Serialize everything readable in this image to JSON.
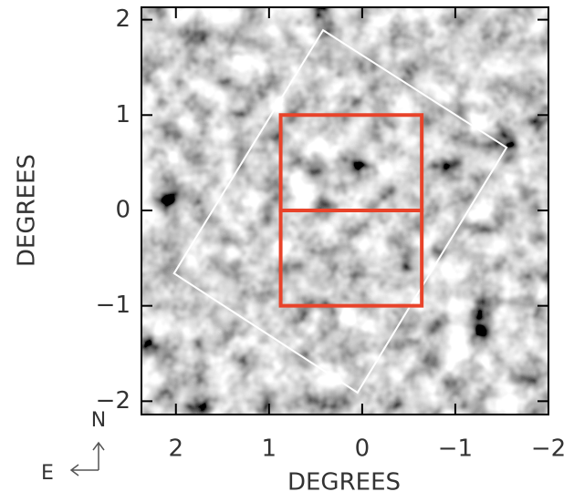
{
  "chart_data": {
    "type": "map",
    "xlabel": "DEGREES",
    "ylabel": "DEGREES",
    "xlim": [
      2.37,
      -2
    ],
    "ylim": [
      -2.14,
      2.13
    ],
    "xticks": [
      2,
      1,
      0,
      {
        "value": -1,
        "label": "−1"
      },
      {
        "value": -2,
        "label": "−2"
      }
    ],
    "yticks": [
      {
        "value": -2,
        "label": "−2"
      },
      {
        "value": -1,
        "label": "−1"
      },
      0,
      1,
      2
    ],
    "compass": {
      "north": "N",
      "east": "E"
    },
    "overlays": [
      {
        "color": "#ffffff",
        "x": [
          0.42,
          -1.55,
          0.05,
          2.02
        ],
        "y": [
          1.89,
          0.66,
          -1.91,
          -0.66
        ]
      },
      {
        "color": "#e8432a",
        "x": [
          0.875,
          -0.64,
          -0.64,
          0.875
        ],
        "y": [
          1,
          1,
          0,
          0
        ]
      },
      {
        "color": "#e8432a",
        "x": [
          0.875,
          -0.64,
          -0.64,
          0.875
        ],
        "y": [
          0,
          0,
          -1,
          -1
        ]
      }
    ]
  }
}
